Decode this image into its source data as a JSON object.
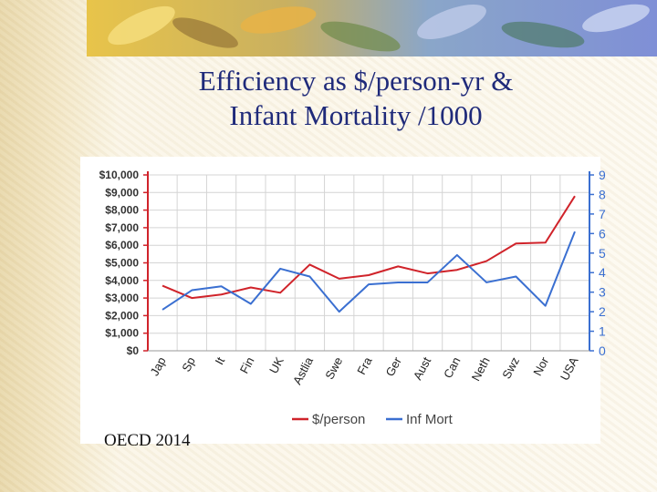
{
  "slide": {
    "title_line1": "Efficiency as $/person-yr &",
    "title_line2": "Infant Mortality /1000",
    "source_note": "OECD 2014"
  },
  "colors": {
    "person": "#d0232a",
    "infmort": "#3a6fd1",
    "left_axis": "#d0232a",
    "right_axis": "#3a6fd1",
    "title": "#1f2a7a"
  },
  "chart_data": {
    "type": "line",
    "categories": [
      "Jap",
      "Sp",
      "It",
      "Fin",
      "UK",
      "Astlia",
      "Swe",
      "Fra",
      "Ger",
      "Aust",
      "Can",
      "Neth",
      "Swz",
      "Nor",
      "USA"
    ],
    "series": [
      {
        "name": "$/person",
        "axis": "left",
        "values": [
          3700,
          3000,
          3200,
          3600,
          3300,
          4900,
          4100,
          4300,
          4800,
          4400,
          4600,
          5100,
          6100,
          6150,
          8800
        ]
      },
      {
        "name": "Inf Mort",
        "axis": "right",
        "values": [
          2.1,
          3.1,
          3.3,
          2.4,
          4.2,
          3.8,
          2.0,
          3.4,
          3.5,
          3.5,
          4.9,
          3.5,
          3.8,
          2.3,
          6.1
        ]
      }
    ],
    "y_left": {
      "ylim": [
        0,
        10000
      ],
      "ticks": [
        "$0",
        "$1,000",
        "$2,000",
        "$3,000",
        "$4,000",
        "$5,000",
        "$6,000",
        "$7,000",
        "$8,000",
        "$9,000",
        "$10,000"
      ]
    },
    "y_right": {
      "ylim": [
        0,
        9
      ],
      "ticks": [
        "0",
        "1",
        "2",
        "3",
        "4",
        "5",
        "6",
        "7",
        "8",
        "9"
      ]
    },
    "legend_position": "bottom",
    "grid": true
  }
}
